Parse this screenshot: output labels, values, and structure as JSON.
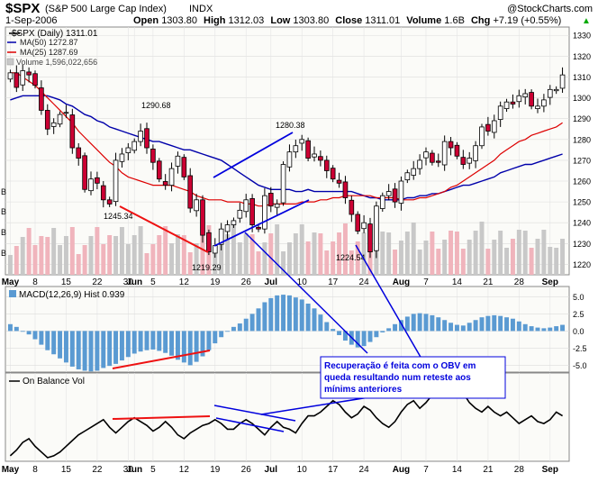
{
  "header": {
    "symbol": "$SPX",
    "name": "(S&P 500 Large Cap Index)",
    "exchange": "INDX",
    "source": "@StockCharts.com",
    "date": "1-Sep-2006",
    "ohlc": [
      {
        "label": "Open",
        "value": "1303.80"
      },
      {
        "label": "High",
        "value": "1312.03"
      },
      {
        "label": "Low",
        "value": "1303.80"
      },
      {
        "label": "Close",
        "value": "1311.01"
      },
      {
        "label": "Volume",
        "value": "1.6B"
      },
      {
        "label": "Chg",
        "value": "+7.19 (+0.55%)"
      }
    ],
    "chg_arrow": "▲"
  },
  "legend": {
    "price": "$SPX (Daily) 1311.01",
    "ma50": "MA(50) 1272.87",
    "ma25": "MA(25) 1287.69",
    "volume": "Volume 1,596,022,656"
  },
  "annotations": {
    "high_1": "1290.68",
    "low_1": "1245.34",
    "low_2": "1219.29",
    "high_2": "1280.38",
    "low_3": "1224.54",
    "note": [
      "Recuperação é feita com o OBV em",
      "queda resultando num reteste aos",
      "mínims anteriores"
    ]
  },
  "volume_axis_marks": [
    "B",
    "B",
    "B",
    "B"
  ],
  "colors": {
    "up_candle": "#ffffff",
    "down_candle": "#cc0033",
    "ma50": "#0000aa",
    "ma25": "#dd0000",
    "volume_up": "#c8c8c8",
    "volume_down": "#f0b4bc",
    "histogram": "#5a9ad2",
    "macd_line": "#000000",
    "trend_blue": "#0000dd",
    "trend_red": "#ee1111",
    "obv_line": "#000000",
    "panel_bg": "#fbfbf8"
  },
  "chart_data": [
    {
      "type": "candlestick",
      "title": "$SPX (Daily) 1311.01",
      "ylim": [
        1215,
        1334
      ],
      "y_ticks": [
        1220,
        1230,
        1240,
        1250,
        1260,
        1270,
        1280,
        1290,
        1300,
        1310,
        1320,
        1330
      ],
      "x_ticks": [
        "May",
        "8",
        "15",
        "22",
        "30",
        "Jun",
        "5",
        "12",
        "19",
        "26",
        "Jul",
        "10",
        "17",
        "24",
        "Aug",
        "7",
        "14",
        "21",
        "28",
        "Sep"
      ],
      "close": [
        1312,
        1305,
        1313,
        1311,
        1306,
        1294,
        1285,
        1288,
        1292,
        1293,
        1276,
        1271,
        1256,
        1261,
        1259,
        1251,
        1249,
        1270,
        1273,
        1276,
        1279,
        1284,
        1276,
        1269,
        1261,
        1258,
        1266,
        1272,
        1262,
        1247,
        1251,
        1234,
        1226,
        1229,
        1237,
        1239,
        1241,
        1246,
        1251,
        1239,
        1237,
        1253,
        1248,
        1249,
        1268,
        1274,
        1277,
        1280,
        1271,
        1273,
        1270,
        1265,
        1261,
        1259,
        1252,
        1244,
        1236,
        1240,
        1226,
        1248,
        1253,
        1255,
        1250,
        1260,
        1264,
        1266,
        1270,
        1274,
        1269,
        1269,
        1279,
        1276,
        1272,
        1268,
        1271,
        1277,
        1286,
        1284,
        1289,
        1296,
        1298,
        1297,
        1301,
        1302,
        1296,
        1296,
        1299,
        1304,
        1304,
        1311
      ],
      "ma50": [
        1299,
        1300,
        1301,
        1301,
        1301,
        1301,
        1301,
        1300,
        1299,
        1297,
        1296,
        1294,
        1292,
        1291,
        1289,
        1288,
        1286,
        1285,
        1284,
        1283,
        1282,
        1281,
        1280,
        1279,
        1279,
        1278,
        1277,
        1276,
        1275,
        1275,
        1274,
        1273,
        1272,
        1271,
        1270,
        1268,
        1266,
        1264,
        1262,
        1260,
        1258,
        1257,
        1256,
        1256,
        1256,
        1256,
        1255,
        1255,
        1256,
        1255,
        1255,
        1255,
        1255,
        1255,
        1255,
        1255,
        1254,
        1253,
        1252,
        1252,
        1251,
        1251,
        1251,
        1251,
        1252,
        1252,
        1253,
        1253,
        1254,
        1254,
        1255,
        1256,
        1257,
        1258,
        1258,
        1259,
        1260,
        1261,
        1262,
        1264,
        1265,
        1266,
        1267,
        1268,
        1268,
        1269,
        1270,
        1271,
        1272,
        1273
      ],
      "ma25": [
        1312,
        1312,
        1310,
        1308,
        1306,
        1303,
        1300,
        1297,
        1294,
        1291,
        1288,
        1284,
        1281,
        1278,
        1275,
        1272,
        1269,
        1267,
        1264,
        1262,
        1261,
        1260,
        1259,
        1258,
        1258,
        1258,
        1258,
        1257,
        1256,
        1255,
        1253,
        1252,
        1251,
        1251,
        1251,
        1250,
        1250,
        1250,
        1249,
        1249,
        1248,
        1248,
        1249,
        1249,
        1249,
        1249,
        1249,
        1250,
        1250,
        1250,
        1251,
        1251,
        1252,
        1252,
        1253,
        1253,
        1253,
        1253,
        1253,
        1252,
        1252,
        1252,
        1252,
        1251,
        1251,
        1251,
        1252,
        1252,
        1253,
        1254,
        1255,
        1257,
        1258,
        1260,
        1262,
        1264,
        1266,
        1268,
        1270,
        1273,
        1275,
        1277,
        1279,
        1280,
        1282,
        1283,
        1284,
        1285,
        1286,
        1288
      ]
    },
    {
      "type": "bar",
      "title": "MACD(12,26,9) Hist 0.939",
      "ylim": [
        -6,
        6.5
      ],
      "y_ticks": [
        5.0,
        2.5,
        0.0,
        -2.5,
        -5.0
      ],
      "values": [
        1.0,
        0.6,
        0.0,
        -0.5,
        -1.2,
        -2.0,
        -2.8,
        -3.4,
        -4.0,
        -4.6,
        -5.2,
        -5.6,
        -5.8,
        -5.9,
        -5.8,
        -5.4,
        -5.1,
        -4.8,
        -4.3,
        -3.8,
        -3.3,
        -3.0,
        -2.8,
        -2.7,
        -2.9,
        -3.2,
        -3.6,
        -4.2,
        -4.6,
        -5.0,
        -4.5,
        -3.7,
        -2.8,
        -1.8,
        -0.9,
        0.0,
        0.6,
        1.1,
        1.8,
        2.5,
        3.3,
        4.2,
        4.8,
        5.2,
        5.3,
        5.2,
        4.9,
        4.6,
        4.0,
        3.3,
        2.4,
        1.3,
        0.3,
        -0.6,
        -1.4,
        -2.0,
        -2.4,
        -2.2,
        -1.6,
        -0.9,
        -0.2,
        0.4,
        1.0,
        1.6,
        2.1,
        2.5,
        2.6,
        2.5,
        2.3,
        2.0,
        1.6,
        1.2,
        0.9,
        0.8,
        1.2,
        1.6,
        2.0,
        2.2,
        2.3,
        2.2,
        2.0,
        1.8,
        1.4,
        1.0,
        0.7,
        0.5,
        0.4,
        0.5,
        0.7,
        0.9
      ]
    },
    {
      "type": "line",
      "title": "On Balance Vol",
      "values": [
        47,
        50,
        54,
        56,
        52,
        49,
        46,
        47,
        49,
        52,
        55,
        58,
        60,
        62,
        64,
        66,
        62,
        59,
        62,
        65,
        67,
        65,
        63,
        60,
        62,
        65,
        62,
        58,
        56,
        59,
        61,
        63,
        64,
        66,
        64,
        61,
        61,
        64,
        66,
        64,
        61,
        58,
        62,
        65,
        62,
        61,
        59,
        64,
        68,
        68,
        70,
        73,
        76,
        74,
        70,
        67,
        69,
        73,
        71,
        67,
        64,
        62,
        65,
        70,
        74,
        76,
        72,
        75,
        79,
        82,
        78,
        80,
        83,
        80,
        75,
        72,
        70,
        73,
        70,
        68,
        70,
        67,
        64,
        66,
        68,
        65,
        64,
        66,
        70,
        68
      ]
    }
  ]
}
